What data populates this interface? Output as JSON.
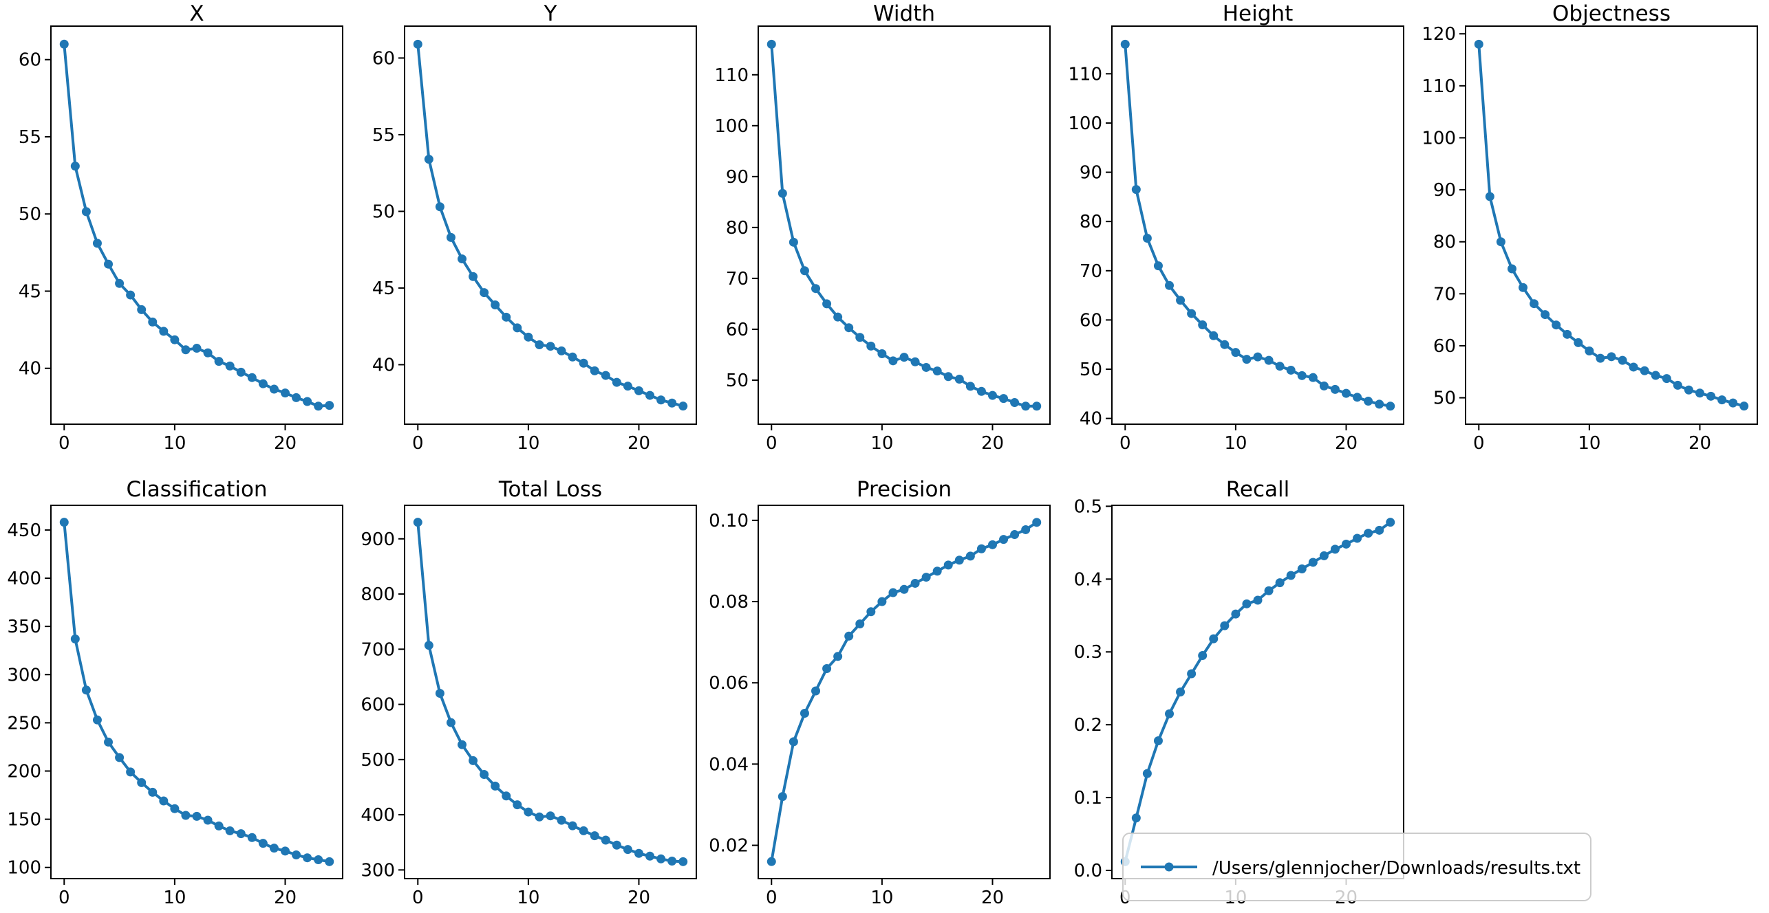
{
  "figure": {
    "background": "#ffffff",
    "accent_color": "#1f77b4",
    "spine_color": "#000000",
    "legend": {
      "label": "/Users/glennjocher/Downloads/results.txt",
      "border_color": "#cccccc",
      "fill": "rgba(255,255,255,0.8)"
    }
  },
  "chart_data": [
    {
      "type": "line",
      "title": "X",
      "row": 0,
      "col": 0,
      "x": [
        0,
        1,
        2,
        3,
        4,
        5,
        6,
        7,
        8,
        9,
        10,
        11,
        12,
        13,
        14,
        15,
        16,
        17,
        18,
        19,
        20,
        21,
        22,
        23,
        24
      ],
      "values": [
        61.0,
        53.1,
        50.15,
        48.1,
        46.75,
        45.5,
        44.75,
        43.8,
        43.0,
        42.4,
        41.85,
        41.2,
        41.3,
        41.0,
        40.45,
        40.15,
        39.75,
        39.4,
        39.0,
        38.65,
        38.4,
        38.1,
        37.85,
        37.55,
        37.6
      ],
      "xlim": [
        -1.2,
        25.2
      ],
      "ylim": [
        36.38,
        62.17
      ],
      "xticks": [
        0,
        10,
        20
      ],
      "yticks": [
        40,
        45,
        50,
        55,
        60
      ],
      "ytick_decimals": 0,
      "grid": false
    },
    {
      "type": "line",
      "title": "Y",
      "row": 0,
      "col": 1,
      "x": [
        0,
        1,
        2,
        3,
        4,
        5,
        6,
        7,
        8,
        9,
        10,
        11,
        12,
        13,
        14,
        15,
        16,
        17,
        18,
        19,
        20,
        21,
        22,
        23,
        24
      ],
      "values": [
        60.9,
        53.4,
        50.3,
        48.3,
        46.9,
        45.75,
        44.7,
        43.9,
        43.1,
        42.4,
        41.8,
        41.3,
        41.2,
        40.9,
        40.5,
        40.1,
        39.6,
        39.3,
        38.85,
        38.6,
        38.3,
        38.0,
        37.7,
        37.5,
        37.3
      ],
      "xlim": [
        -1.2,
        25.2
      ],
      "ylim": [
        36.12,
        62.08
      ],
      "xticks": [
        0,
        10,
        20
      ],
      "yticks": [
        40,
        45,
        50,
        55,
        60
      ],
      "ytick_decimals": 0,
      "grid": false
    },
    {
      "type": "line",
      "title": "Width",
      "row": 0,
      "col": 2,
      "x": [
        0,
        1,
        2,
        3,
        4,
        5,
        6,
        7,
        8,
        9,
        10,
        11,
        12,
        13,
        14,
        15,
        16,
        17,
        18,
        19,
        20,
        21,
        22,
        23,
        24
      ],
      "values": [
        116.0,
        86.7,
        77.1,
        71.5,
        68.0,
        65.0,
        62.4,
        60.3,
        58.4,
        56.7,
        55.2,
        53.8,
        54.5,
        53.6,
        52.5,
        51.8,
        50.7,
        50.2,
        48.8,
        47.8,
        47.0,
        46.4,
        45.6,
        44.9,
        44.9
      ],
      "xlim": [
        -1.2,
        25.2
      ],
      "ylim": [
        41.35,
        119.56
      ],
      "xticks": [
        0,
        10,
        20
      ],
      "yticks": [
        50,
        60,
        70,
        80,
        90,
        100,
        110
      ],
      "ytick_decimals": 0,
      "grid": false
    },
    {
      "type": "line",
      "title": "Height",
      "row": 0,
      "col": 3,
      "x": [
        0,
        1,
        2,
        3,
        4,
        5,
        6,
        7,
        8,
        9,
        10,
        11,
        12,
        13,
        14,
        15,
        16,
        17,
        18,
        19,
        20,
        21,
        22,
        23,
        24
      ],
      "values": [
        116.0,
        86.5,
        76.6,
        71.0,
        67.0,
        64.0,
        61.3,
        59.0,
        56.8,
        55.0,
        53.4,
        52.0,
        52.5,
        51.8,
        50.6,
        49.8,
        48.7,
        48.3,
        46.6,
        45.9,
        45.1,
        44.3,
        43.5,
        42.9,
        42.5
      ],
      "xlim": [
        -1.2,
        25.2
      ],
      "ylim": [
        38.83,
        119.68
      ],
      "xticks": [
        0,
        10,
        20
      ],
      "yticks": [
        40,
        50,
        60,
        70,
        80,
        90,
        100,
        110
      ],
      "ytick_decimals": 0,
      "grid": false
    },
    {
      "type": "line",
      "title": "Objectness",
      "row": 0,
      "col": 4,
      "x": [
        0,
        1,
        2,
        3,
        4,
        5,
        6,
        7,
        8,
        9,
        10,
        11,
        12,
        13,
        14,
        15,
        16,
        17,
        18,
        19,
        20,
        21,
        22,
        23,
        24
      ],
      "values": [
        118.0,
        88.7,
        80.0,
        74.8,
        71.2,
        68.1,
        66.0,
        64.0,
        62.2,
        60.6,
        59.0,
        57.6,
        57.9,
        57.2,
        55.9,
        55.2,
        54.3,
        53.7,
        52.4,
        51.5,
        50.9,
        50.3,
        49.6,
        49.0,
        48.4
      ],
      "xlim": [
        -1.2,
        25.2
      ],
      "ylim": [
        44.92,
        121.48
      ],
      "xticks": [
        0,
        10,
        20
      ],
      "yticks": [
        50,
        60,
        70,
        80,
        90,
        100,
        110,
        120
      ],
      "ytick_decimals": 0,
      "grid": false
    },
    {
      "type": "line",
      "title": "Classification",
      "row": 1,
      "col": 0,
      "x": [
        0,
        1,
        2,
        3,
        4,
        5,
        6,
        7,
        8,
        9,
        10,
        11,
        12,
        13,
        14,
        15,
        16,
        17,
        18,
        19,
        20,
        21,
        22,
        23,
        24
      ],
      "values": [
        458,
        337,
        284,
        253,
        230,
        214,
        199,
        188,
        178,
        169,
        161,
        154,
        153,
        149,
        143,
        138,
        135,
        131,
        125,
        120,
        117,
        113,
        110,
        108,
        106
      ],
      "xlim": [
        -1.2,
        25.2
      ],
      "ylim": [
        88.4,
        475.6
      ],
      "xticks": [
        0,
        10,
        20
      ],
      "yticks": [
        100,
        150,
        200,
        250,
        300,
        350,
        400,
        450
      ],
      "ytick_decimals": 0,
      "grid": false
    },
    {
      "type": "line",
      "title": "Total Loss",
      "row": 1,
      "col": 1,
      "x": [
        0,
        1,
        2,
        3,
        4,
        5,
        6,
        7,
        8,
        9,
        10,
        11,
        12,
        13,
        14,
        15,
        16,
        17,
        18,
        19,
        20,
        21,
        22,
        23,
        24
      ],
      "values": [
        930,
        707,
        620,
        567,
        527,
        498,
        473,
        452,
        434,
        418,
        405,
        396,
        398,
        390,
        380,
        371,
        362,
        354,
        345,
        337,
        330,
        325,
        320,
        316,
        315
      ],
      "xlim": [
        -1.2,
        25.2
      ],
      "ylim": [
        284.25,
        960.75
      ],
      "xticks": [
        0,
        10,
        20
      ],
      "yticks": [
        300,
        400,
        500,
        600,
        700,
        800,
        900
      ],
      "ytick_decimals": 0,
      "grid": false
    },
    {
      "type": "line",
      "title": "Precision",
      "row": 1,
      "col": 2,
      "x": [
        0,
        1,
        2,
        3,
        4,
        5,
        6,
        7,
        8,
        9,
        10,
        11,
        12,
        13,
        14,
        15,
        16,
        17,
        18,
        19,
        20,
        21,
        22,
        23,
        24
      ],
      "values": [
        0.016,
        0.032,
        0.0455,
        0.0525,
        0.058,
        0.0635,
        0.0665,
        0.0715,
        0.0745,
        0.0775,
        0.08,
        0.0822,
        0.083,
        0.0845,
        0.086,
        0.0875,
        0.089,
        0.0902,
        0.0912,
        0.093,
        0.094,
        0.0953,
        0.0965,
        0.0977,
        0.0995
      ],
      "xlim": [
        -1.2,
        25.2
      ],
      "ylim": [
        0.0118,
        0.1037
      ],
      "xticks": [
        0,
        10,
        20
      ],
      "yticks": [
        0.02,
        0.04,
        0.06,
        0.08,
        0.1
      ],
      "ytick_decimals": 2,
      "grid": false
    },
    {
      "type": "line",
      "title": "Recall",
      "row": 1,
      "col": 3,
      "x": [
        0,
        1,
        2,
        3,
        4,
        5,
        6,
        7,
        8,
        9,
        10,
        11,
        12,
        13,
        14,
        15,
        16,
        17,
        18,
        19,
        20,
        21,
        22,
        23,
        24
      ],
      "values": [
        0.012,
        0.072,
        0.133,
        0.178,
        0.215,
        0.245,
        0.27,
        0.295,
        0.318,
        0.336,
        0.352,
        0.366,
        0.371,
        0.384,
        0.395,
        0.405,
        0.414,
        0.423,
        0.432,
        0.441,
        0.448,
        0.456,
        0.463,
        0.467,
        0.478
      ],
      "xlim": [
        -1.2,
        25.2
      ],
      "ylim": [
        -0.0113,
        0.5013
      ],
      "xticks": [
        0,
        10,
        20
      ],
      "yticks": [
        0.0,
        0.1,
        0.2,
        0.3,
        0.4,
        0.5
      ],
      "ytick_decimals": 1,
      "grid": false,
      "legend_label": "/Users/glennjocher/Downloads/results.txt",
      "legend_position": "lower left, extending right of axes"
    }
  ]
}
